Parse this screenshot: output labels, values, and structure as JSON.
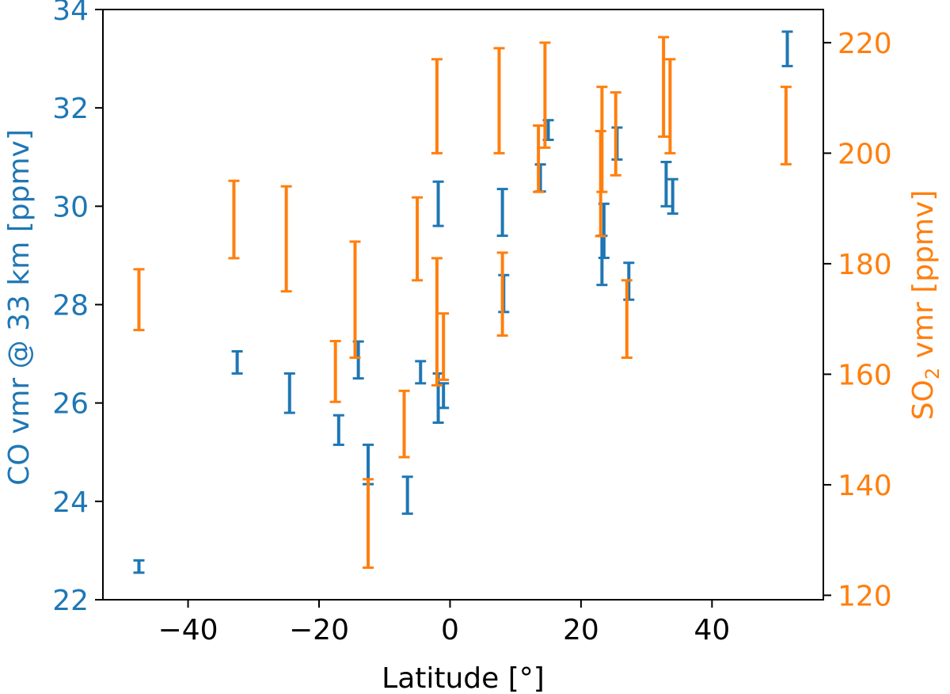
{
  "chart_data": {
    "type": "scatter",
    "xlabel": "Latitude [°]",
    "ylabel_left": "CO vmr @ 33 km [ppmv]",
    "ylabel_right": {
      "main": "SO",
      "sub": "2",
      "rest": " vmr [ppmv]"
    },
    "xlim": [
      -53,
      57
    ],
    "ylim_left": [
      22,
      34
    ],
    "ylim_right": [
      119.2,
      226
    ],
    "x_ticks": [
      -40,
      -20,
      0,
      20,
      40
    ],
    "x_tick_labels": [
      "−40",
      "−20",
      "0",
      "20",
      "40"
    ],
    "y_left_ticks": [
      22,
      24,
      26,
      28,
      30,
      32,
      34
    ],
    "y_left_tick_labels": [
      "22",
      "24",
      "26",
      "28",
      "30",
      "32",
      "34"
    ],
    "y_right_ticks": [
      120,
      140,
      160,
      180,
      200,
      220
    ],
    "y_right_tick_labels": [
      "120",
      "140",
      "160",
      "180",
      "200",
      "220"
    ],
    "grid": false,
    "colors": {
      "co": "#1f77b4",
      "so2": "#ff7f0e",
      "axis": "#000000"
    },
    "series": [
      {
        "axis": "left",
        "color": "#1f77b4",
        "points": [
          {
            "x": -47.5,
            "low": 22.55,
            "high": 22.8
          },
          {
            "x": -32.5,
            "low": 26.6,
            "high": 27.05
          },
          {
            "x": -24.5,
            "low": 25.8,
            "high": 26.6
          },
          {
            "x": -17,
            "low": 25.15,
            "high": 25.75
          },
          {
            "x": -14,
            "low": 26.5,
            "high": 27.25
          },
          {
            "x": -12.5,
            "low": 24.35,
            "high": 25.15
          },
          {
            "x": -6.5,
            "low": 23.75,
            "high": 24.5
          },
          {
            "x": -4.5,
            "low": 26.4,
            "high": 26.85
          },
          {
            "x": -1.8,
            "low": 25.6,
            "high": 26.6
          },
          {
            "x": -1,
            "low": 25.9,
            "high": 26.4
          },
          {
            "x": -1.8,
            "low": 29.6,
            "high": 30.5
          },
          {
            "x": 8,
            "low": 29.4,
            "high": 30.35
          },
          {
            "x": 8.2,
            "low": 27.85,
            "high": 28.6
          },
          {
            "x": 13.8,
            "low": 30.3,
            "high": 30.85
          },
          {
            "x": 15,
            "low": 31.35,
            "high": 31.75
          },
          {
            "x": 23.2,
            "low": 28.4,
            "high": 29.4
          },
          {
            "x": 23.5,
            "low": 28.95,
            "high": 30.05
          },
          {
            "x": 25.5,
            "low": 30.95,
            "high": 31.6
          },
          {
            "x": 27.3,
            "low": 28.1,
            "high": 28.85
          },
          {
            "x": 33,
            "low": 30,
            "high": 30.9
          },
          {
            "x": 34,
            "low": 29.85,
            "high": 30.55
          },
          {
            "x": 51.5,
            "low": 32.85,
            "high": 33.55
          }
        ]
      },
      {
        "axis": "right",
        "color": "#ff7f0e",
        "points": [
          {
            "x": -47.5,
            "low": 168,
            "high": 179
          },
          {
            "x": -33,
            "low": 181,
            "high": 195
          },
          {
            "x": -25,
            "low": 175,
            "high": 194
          },
          {
            "x": -17.5,
            "low": 155,
            "high": 166
          },
          {
            "x": -14.5,
            "low": 163,
            "high": 184
          },
          {
            "x": -12.5,
            "low": 125,
            "high": 141
          },
          {
            "x": -7,
            "low": 145,
            "high": 157
          },
          {
            "x": -5,
            "low": 177,
            "high": 192
          },
          {
            "x": -2,
            "low": 158,
            "high": 181
          },
          {
            "x": -1,
            "low": 159,
            "high": 171
          },
          {
            "x": -2,
            "low": 200,
            "high": 217
          },
          {
            "x": 7.5,
            "low": 200,
            "high": 219
          },
          {
            "x": 8,
            "low": 167,
            "high": 182
          },
          {
            "x": 13.5,
            "low": 193,
            "high": 205
          },
          {
            "x": 14.5,
            "low": 201,
            "high": 220
          },
          {
            "x": 23,
            "low": 185,
            "high": 204
          },
          {
            "x": 23.2,
            "low": 193,
            "high": 212
          },
          {
            "x": 25.3,
            "low": 196,
            "high": 211
          },
          {
            "x": 27,
            "low": 163,
            "high": 177
          },
          {
            "x": 32.6,
            "low": 203,
            "high": 221
          },
          {
            "x": 33.6,
            "low": 200,
            "high": 217
          },
          {
            "x": 51.3,
            "low": 198,
            "high": 212
          }
        ]
      }
    ]
  }
}
